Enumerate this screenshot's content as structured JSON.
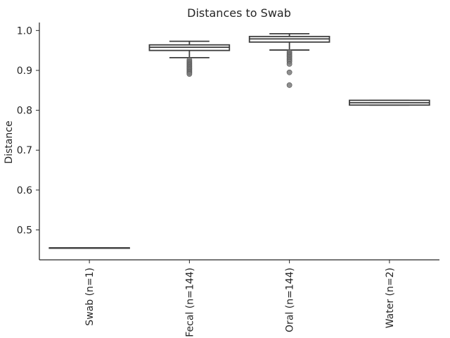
{
  "chart_data": {
    "type": "box",
    "title": "Distances to Swab",
    "xlabel": "",
    "ylabel": "Distance",
    "ylim": [
      0.425,
      1.02
    ],
    "yticks": [
      0.5,
      0.6,
      0.7,
      0.8,
      0.9,
      1.0
    ],
    "ytick_labels": [
      "0.5",
      "0.6",
      "0.7",
      "0.8",
      "0.9",
      "1.0"
    ],
    "grid": false,
    "categories": [
      "Swab (n=1)",
      "Fecal (n=144)",
      "Oral (n=144)",
      "Water (n=2)"
    ],
    "boxes": [
      {
        "category": "Swab (n=1)",
        "whisker_low": 0.455,
        "q1": 0.455,
        "median": 0.455,
        "q3": 0.455,
        "whisker_high": 0.455,
        "outliers": []
      },
      {
        "category": "Fecal (n=144)",
        "whisker_low": 0.932,
        "q1": 0.95,
        "median": 0.958,
        "q3": 0.964,
        "whisker_high": 0.973,
        "outliers": [
          0.926,
          0.922,
          0.918,
          0.915,
          0.912,
          0.909,
          0.906,
          0.903,
          0.9,
          0.897,
          0.894,
          0.891
        ]
      },
      {
        "category": "Oral (n=144)",
        "whisker_low": 0.951,
        "q1": 0.971,
        "median": 0.979,
        "q3": 0.985,
        "whisker_high": 0.992,
        "outliers": [
          0.946,
          0.942,
          0.938,
          0.934,
          0.93,
          0.926,
          0.922,
          0.916,
          0.895,
          0.863
        ]
      },
      {
        "category": "Water (n=2)",
        "whisker_low": 0.813,
        "q1": 0.813,
        "median": 0.819,
        "q3": 0.825,
        "whisker_high": 0.825,
        "outliers": []
      }
    ],
    "colors": {
      "box_edge": "#3d3d3d",
      "outlier_fill": "#7a7a7a",
      "axis": "#262626",
      "text": "#262626"
    }
  }
}
